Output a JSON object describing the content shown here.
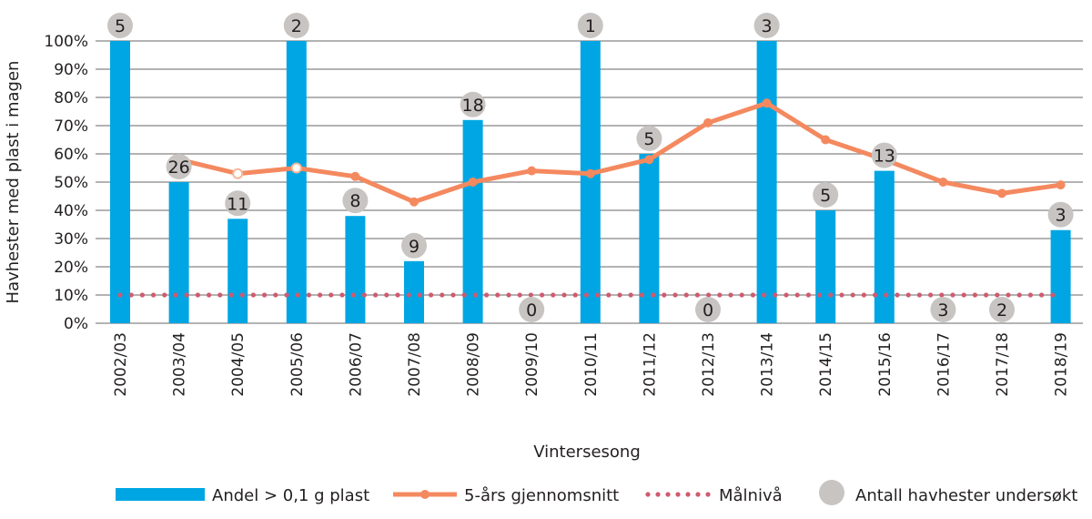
{
  "chart_data": {
    "type": "bar",
    "title": "",
    "xlabel": "Vintersesong",
    "ylabel": "Havhester med plast i magen",
    "ylim": [
      0,
      100
    ],
    "yticks": [
      "0%",
      "10%",
      "20%",
      "30%",
      "40%",
      "50%",
      "60%",
      "70%",
      "80%",
      "90%",
      "100%"
    ],
    "grid": true,
    "legend_position": "bottom",
    "categories": [
      "2002/03",
      "2003/04",
      "2004/05",
      "2005/06",
      "2006/07",
      "2007/08",
      "2008/09",
      "2009/10",
      "2010/11",
      "2011/12",
      "2012/13",
      "2013/14",
      "2014/15",
      "2015/16",
      "2016/17",
      "2017/18",
      "2018/19"
    ],
    "series": [
      {
        "name": "Andel > 0,1 g plast",
        "type": "bar",
        "color": "#00a6e3",
        "values": [
          100,
          50,
          37,
          100,
          38,
          22,
          72,
          0,
          100,
          60,
          0,
          100,
          40,
          54,
          0,
          0,
          33
        ]
      },
      {
        "name": "5-års gjennomsnitt",
        "type": "line",
        "color": "#f4895f",
        "values": [
          null,
          58,
          53,
          55,
          52,
          43,
          50,
          54,
          53,
          58,
          71,
          78,
          65,
          58,
          50,
          46,
          49
        ],
        "hollow_points": [
          1,
          2,
          3
        ]
      },
      {
        "name": "Målnivå",
        "type": "line-dotted",
        "color": "#cf5b6f",
        "values": [
          10,
          10,
          10,
          10,
          10,
          10,
          10,
          10,
          10,
          10,
          10,
          10,
          10,
          10,
          10,
          10,
          10
        ]
      },
      {
        "name": "Antall havhester undersøkt",
        "type": "label-circle",
        "color": "#c8c4c2",
        "values": [
          5,
          26,
          11,
          2,
          8,
          9,
          18,
          0,
          1,
          5,
          0,
          3,
          5,
          13,
          3,
          2,
          3
        ]
      }
    ]
  }
}
